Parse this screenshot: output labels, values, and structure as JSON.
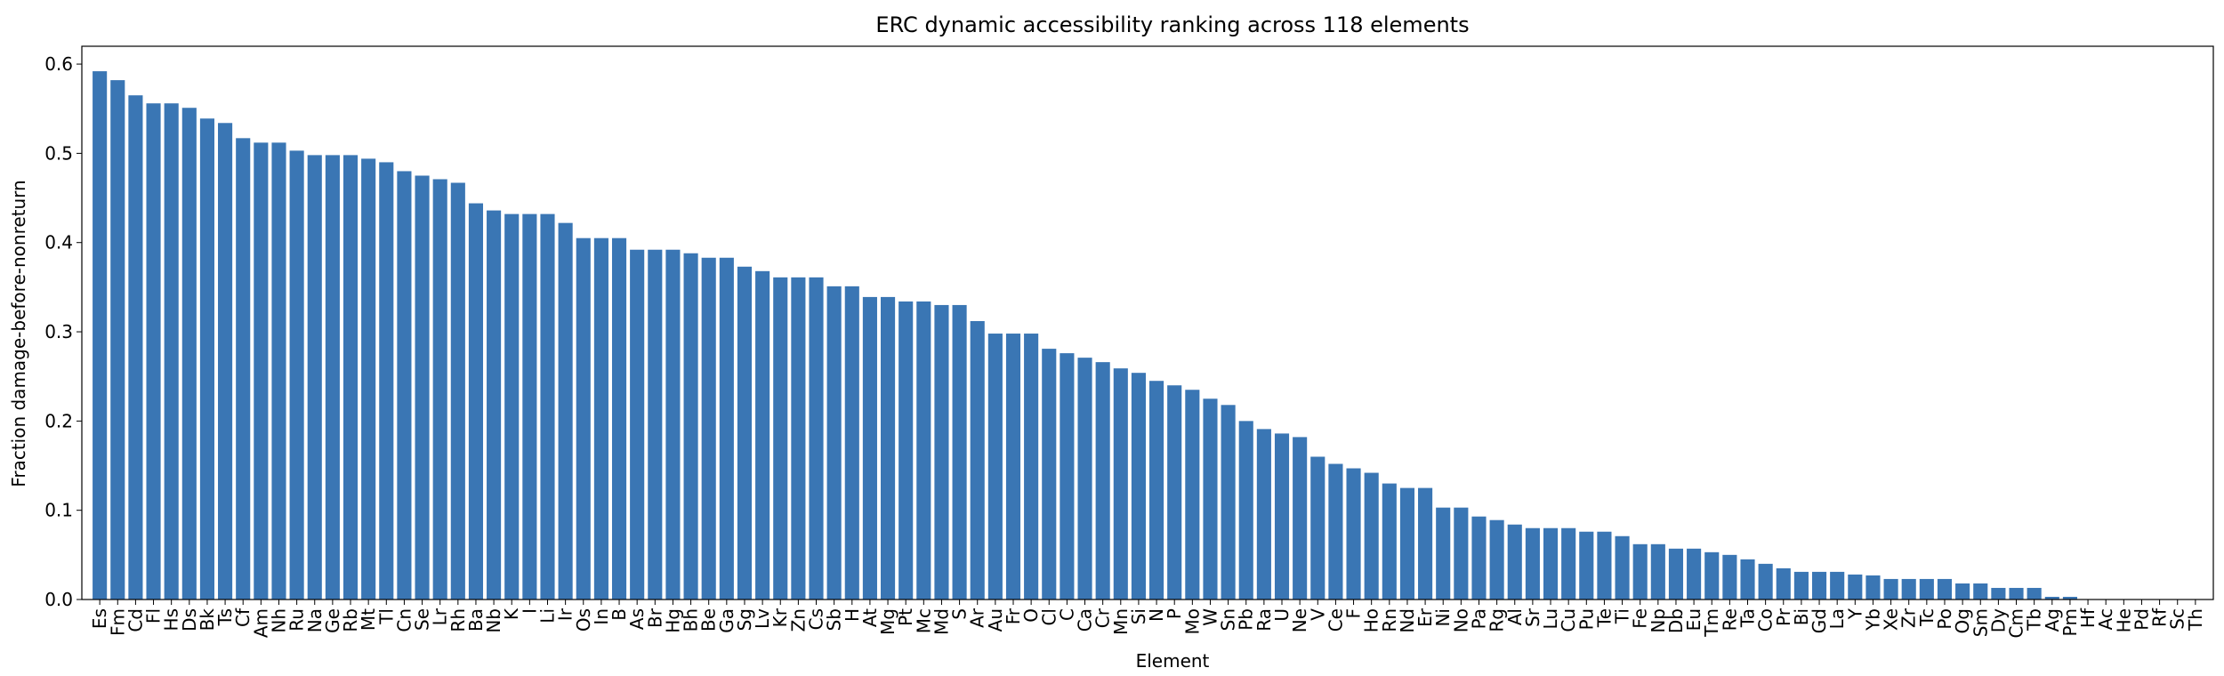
{
  "chart_data": {
    "type": "bar",
    "title": "ERC dynamic accessibility ranking across 118 elements",
    "xlabel": "Element",
    "ylabel": "Fraction damage-before-nonreturn",
    "ylim": [
      0,
      0.62
    ],
    "yticks": [
      "0.0",
      "0.1",
      "0.2",
      "0.3",
      "0.4",
      "0.5",
      "0.6"
    ],
    "bar_color": "#3a76b4",
    "grid": false,
    "categories": [
      "Es",
      "Fm",
      "Cd",
      "Fl",
      "Hs",
      "Ds",
      "Bk",
      "Ts",
      "Cf",
      "Am",
      "Nh",
      "Ru",
      "Na",
      "Ge",
      "Rb",
      "Mt",
      "Tl",
      "Cn",
      "Se",
      "Lr",
      "Rh",
      "Ba",
      "Nb",
      "K",
      "I",
      "Li",
      "Ir",
      "Os",
      "In",
      "B",
      "As",
      "Br",
      "Hg",
      "Bh",
      "Be",
      "Ga",
      "Sg",
      "Lv",
      "Kr",
      "Zn",
      "Cs",
      "Sb",
      "H",
      "At",
      "Mg",
      "Pt",
      "Mc",
      "Md",
      "S",
      "Ar",
      "Au",
      "Fr",
      "O",
      "Cl",
      "C",
      "Ca",
      "Cr",
      "Mn",
      "Si",
      "N",
      "P",
      "Mo",
      "W",
      "Sn",
      "Pb",
      "Ra",
      "U",
      "Ne",
      "V",
      "Ce",
      "F",
      "Ho",
      "Rn",
      "Nd",
      "Er",
      "Ni",
      "No",
      "Pa",
      "Rg",
      "Al",
      "Sr",
      "Lu",
      "Cu",
      "Pu",
      "Te",
      "Ti",
      "Fe",
      "Np",
      "Db",
      "Eu",
      "Tm",
      "Re",
      "Ta",
      "Co",
      "Pr",
      "Bi",
      "Gd",
      "La",
      "Y",
      "Yb",
      "Xe",
      "Zr",
      "Tc",
      "Po",
      "Og",
      "Sm",
      "Dy",
      "Cm",
      "Tb",
      "Ag",
      "Pm",
      "Hf",
      "Ac",
      "He",
      "Pd",
      "Rf",
      "Sc",
      "Th"
    ],
    "values": [
      0.592,
      0.582,
      0.565,
      0.556,
      0.556,
      0.551,
      0.539,
      0.534,
      0.517,
      0.512,
      0.512,
      0.503,
      0.498,
      0.498,
      0.498,
      0.494,
      0.49,
      0.48,
      0.475,
      0.471,
      0.467,
      0.444,
      0.436,
      0.432,
      0.432,
      0.432,
      0.422,
      0.405,
      0.405,
      0.405,
      0.392,
      0.392,
      0.392,
      0.388,
      0.383,
      0.383,
      0.373,
      0.368,
      0.361,
      0.361,
      0.361,
      0.351,
      0.351,
      0.339,
      0.339,
      0.334,
      0.334,
      0.33,
      0.33,
      0.312,
      0.298,
      0.298,
      0.298,
      0.281,
      0.276,
      0.271,
      0.266,
      0.259,
      0.254,
      0.245,
      0.24,
      0.235,
      0.225,
      0.218,
      0.2,
      0.191,
      0.186,
      0.182,
      0.16,
      0.152,
      0.147,
      0.142,
      0.13,
      0.125,
      0.125,
      0.103,
      0.103,
      0.093,
      0.089,
      0.084,
      0.08,
      0.08,
      0.08,
      0.076,
      0.076,
      0.071,
      0.062,
      0.062,
      0.057,
      0.057,
      0.053,
      0.05,
      0.045,
      0.04,
      0.035,
      0.031,
      0.031,
      0.031,
      0.028,
      0.027,
      0.023,
      0.023,
      0.023,
      0.023,
      0.018,
      0.018,
      0.013,
      0.013,
      0.013,
      0.003,
      0.003,
      0.0,
      0.0,
      0.0,
      0.0,
      0.0,
      0.0,
      0.0
    ]
  }
}
